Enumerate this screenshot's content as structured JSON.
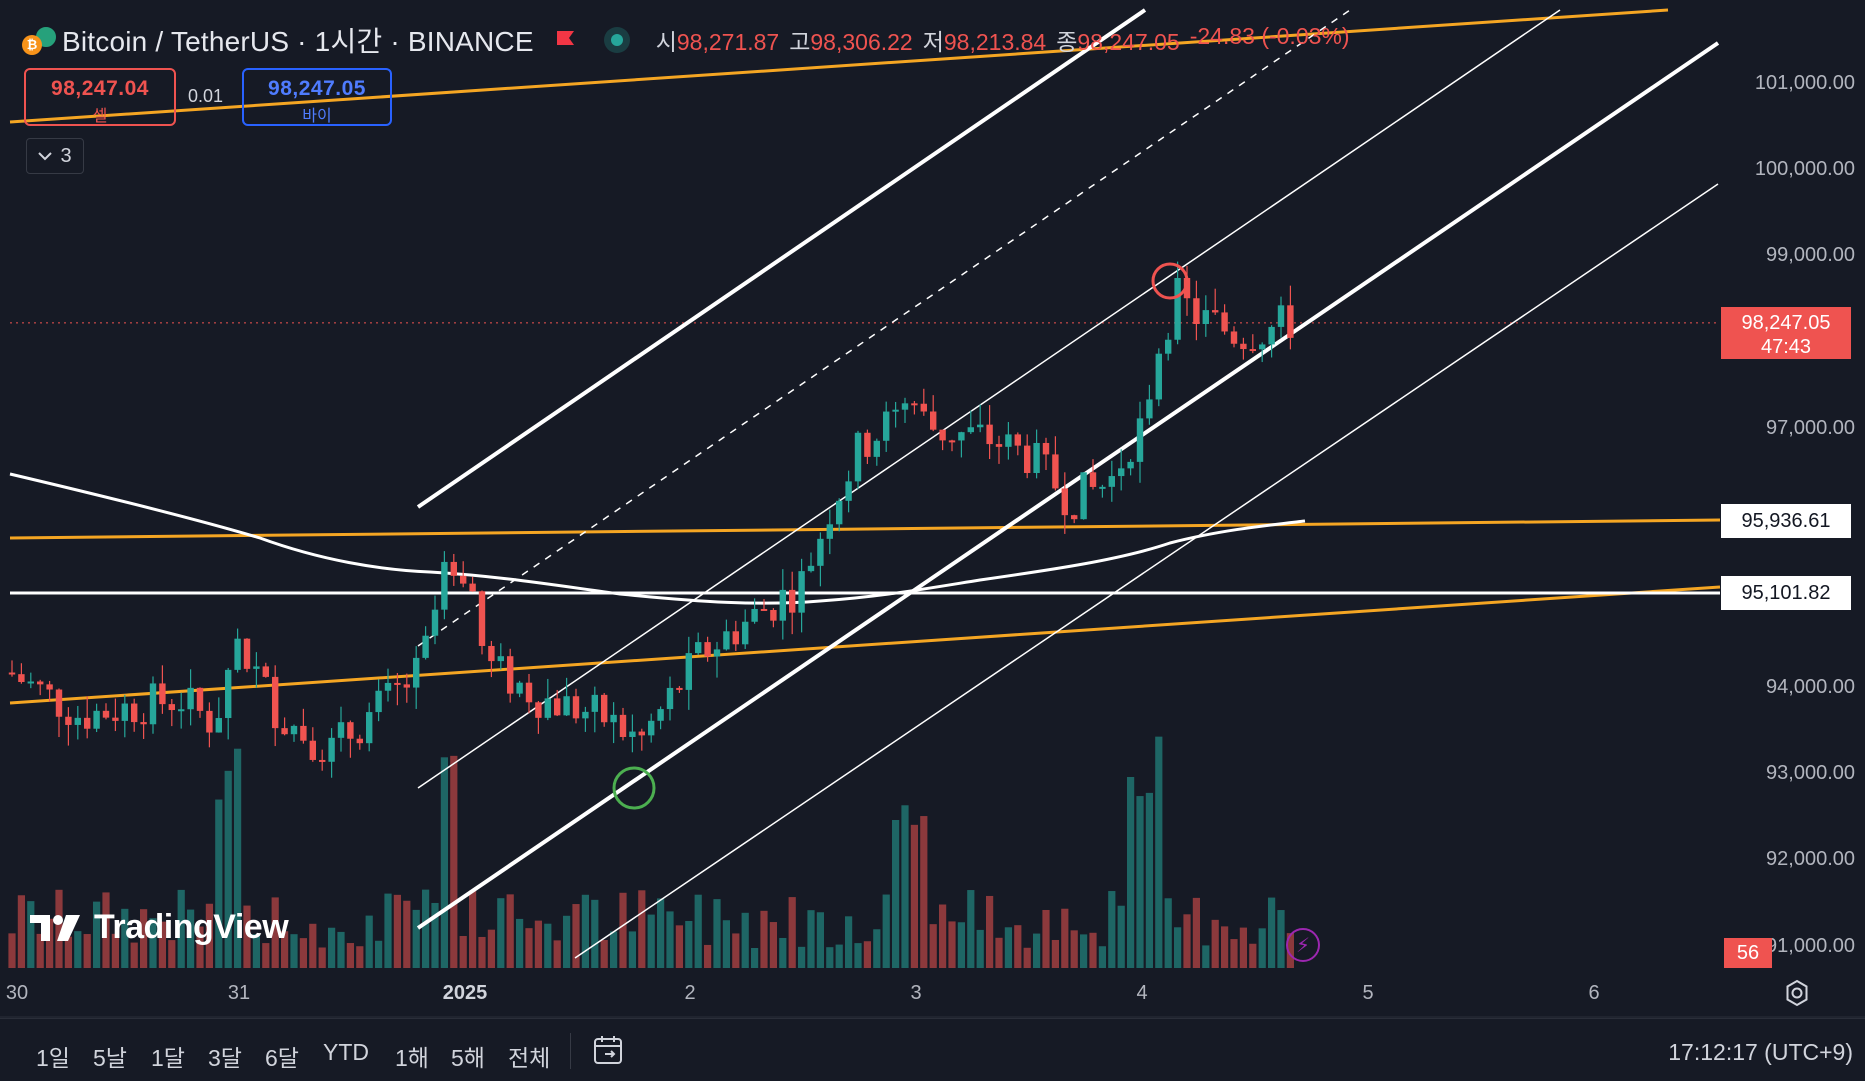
{
  "header": {
    "symbol_title": "Bitcoin / TetherUS · 1시간 · BINANCE",
    "ohlc": [
      {
        "key": "시",
        "value": "98,271.87"
      },
      {
        "key": "고",
        "value": "98,306.22"
      },
      {
        "key": "저",
        "value": "98,213.84"
      },
      {
        "key": "종",
        "value": "98,247.05"
      }
    ],
    "change": "-24.83 (-0.03%)",
    "flag_icon": "flag-icon",
    "live_icon": "market-open-dot"
  },
  "trade": {
    "sell_price": "98,247.04",
    "sell_label": "셀",
    "spread": "0.01",
    "buy_price": "98,247.05",
    "buy_label": "바이"
  },
  "indicators_toggle": {
    "count": "3"
  },
  "price_axis": {
    "labels": [
      "101,000.00",
      "100,000.00",
      "99,000.00",
      "97,000.00",
      "94,000.00",
      "93,000.00",
      "92,000.00",
      "91,000.00"
    ],
    "current_price": "98,247.05",
    "countdown": "47:43",
    "level_1": "95,936.61",
    "level_2": "95,101.82",
    "volume_value": "56"
  },
  "time_axis": {
    "labels": [
      "30",
      "31",
      "2025",
      "2",
      "3",
      "4",
      "5",
      "6"
    ]
  },
  "watermark": "TradingView",
  "bottom_bar": {
    "ranges": [
      "1일",
      "5날",
      "1달",
      "3달",
      "6달",
      "YTD",
      "1해",
      "5해",
      "전체"
    ],
    "clock": "17:12:17 (UTC+9)"
  },
  "colors": {
    "background": "#161a25",
    "up": "#26a69a",
    "down": "#ef5350",
    "orange_line": "#f5a623",
    "white_line": "#ffffff"
  }
}
